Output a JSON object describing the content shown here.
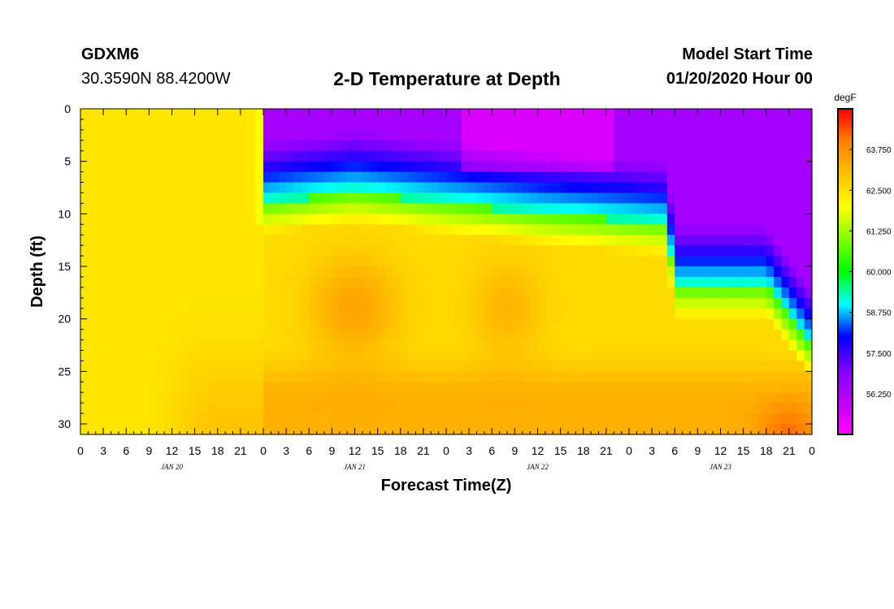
{
  "header": {
    "station_id": "GDXM6",
    "coordinates": "30.3590N 88.4200W",
    "title": "2-D Temperature at Depth",
    "start_label": "Model Start Time",
    "start_value": "01/20/2020 Hour 00"
  },
  "chart_data": {
    "type": "heatmap",
    "title": "2-D Temperature at Depth",
    "xlabel": "Forecast Time(Z)",
    "ylabel": "Depth (ft)",
    "x_unit_hours": [
      0,
      96
    ],
    "x_tick_labels": [
      "0",
      "3",
      "6",
      "9",
      "12",
      "15",
      "18",
      "21",
      "0",
      "3",
      "6",
      "9",
      "12",
      "15",
      "18",
      "21",
      "0",
      "3",
      "6",
      "9",
      "12",
      "15",
      "18",
      "21",
      "0",
      "3",
      "6",
      "9",
      "12",
      "15",
      "18",
      "21",
      "0"
    ],
    "day_labels": [
      {
        "text": "JAN 20",
        "hour": 12
      },
      {
        "text": "JAN 21",
        "hour": 36
      },
      {
        "text": "JAN 22",
        "hour": 60
      },
      {
        "text": "JAN 23",
        "hour": 84
      }
    ],
    "ylim": [
      0,
      31
    ],
    "y_tick_labels": [
      "0",
      "5",
      "10",
      "15",
      "20",
      "25",
      "30"
    ],
    "y_tick_values": [
      0,
      5,
      10,
      15,
      20,
      25,
      30
    ],
    "colorbar": {
      "unit": "degF",
      "range": [
        55,
        65
      ],
      "tick_labels": [
        "63.750",
        "62.500",
        "61.250",
        "60.000",
        "58.750",
        "57.500",
        "56.250"
      ],
      "tick_values": [
        63.75,
        62.5,
        61.25,
        60.0,
        58.75,
        57.5,
        56.25
      ],
      "colors": [
        "#ff00ff",
        "#c000ff",
        "#8000ff",
        "#0000ff",
        "#00ffff",
        "#00ff00",
        "#80ff00",
        "#ffff00",
        "#ffc000",
        "#ff8000",
        "#ff0000"
      ]
    },
    "cold_layer_boundary_ft": [
      {
        "hour": 0,
        "depth": 0
      },
      {
        "hour": 24,
        "depth": 9
      },
      {
        "hour": 36,
        "depth": 8
      },
      {
        "hour": 60,
        "depth": 10
      },
      {
        "hour": 77,
        "depth": 11
      },
      {
        "hour": 78,
        "depth": 17
      },
      {
        "hour": 90,
        "depth": 17
      },
      {
        "hour": 96,
        "depth": 23
      }
    ]
  }
}
